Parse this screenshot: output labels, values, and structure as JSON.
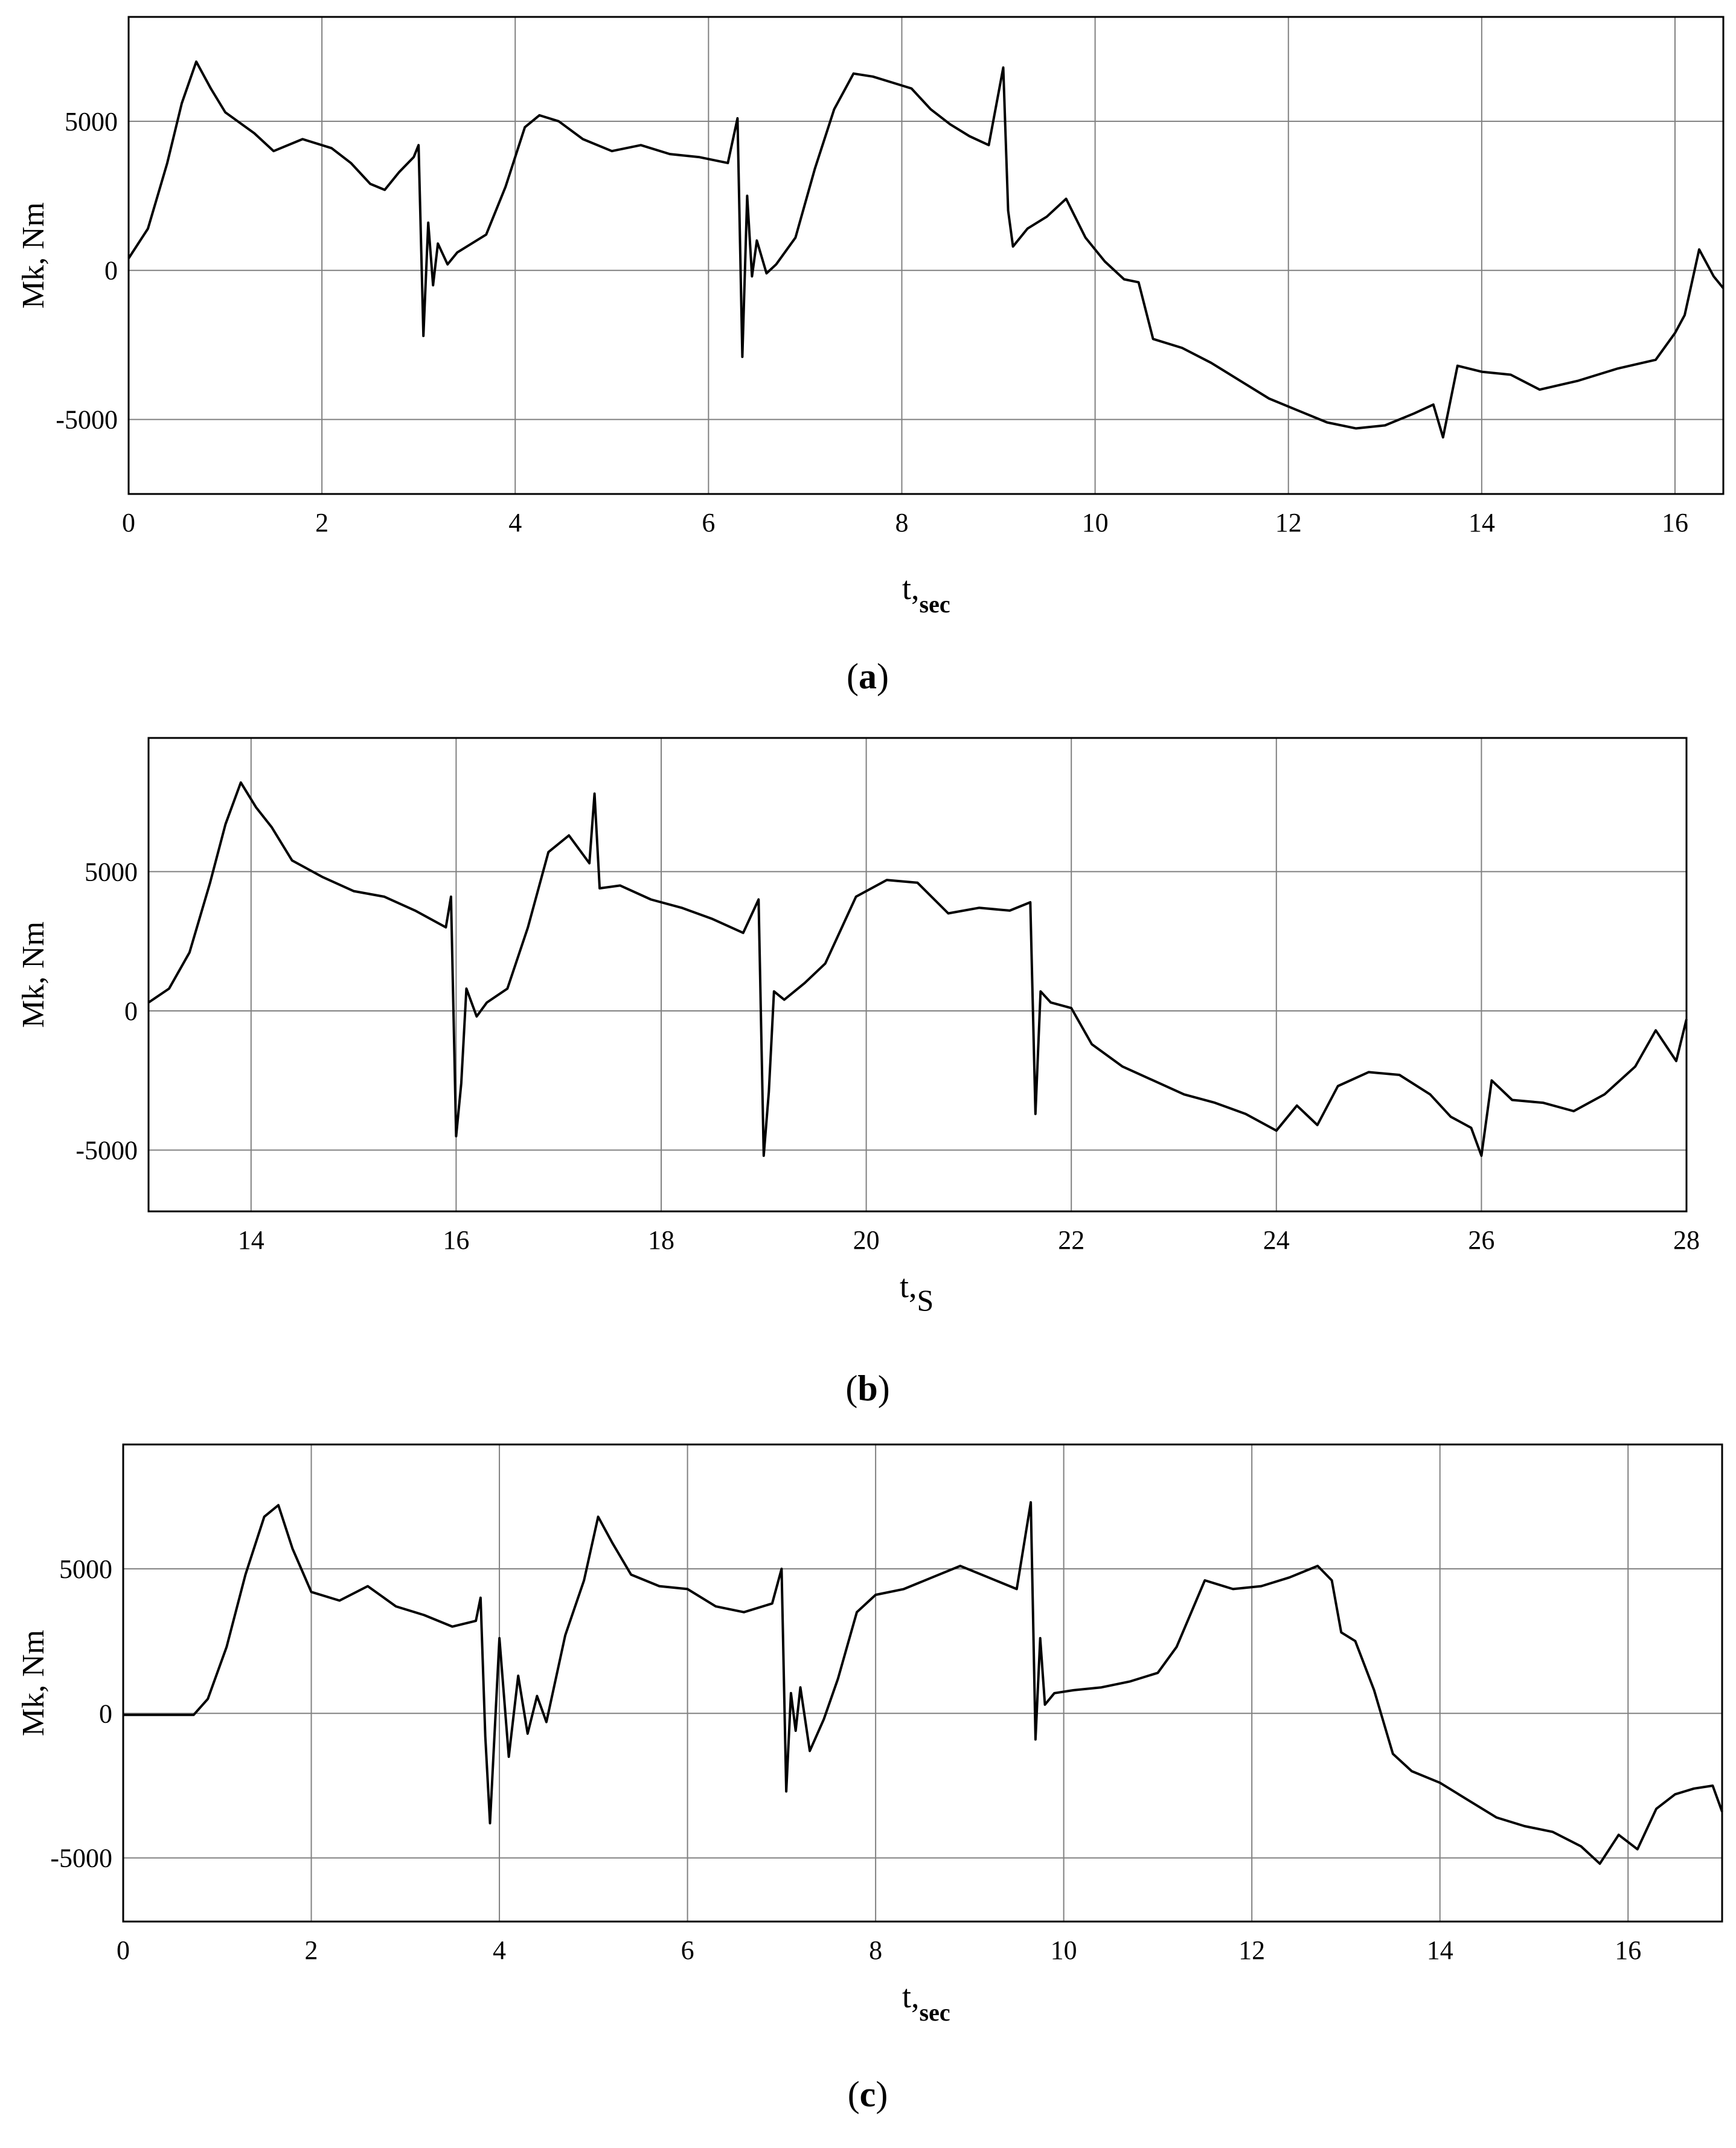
{
  "figure": {
    "panels": [
      {
        "id": "a",
        "label_letter": "a",
        "label_open": "(",
        "label_close": ")"
      },
      {
        "id": "b",
        "label_letter": "b",
        "label_open": "(",
        "label_close": ")"
      },
      {
        "id": "c",
        "label_letter": "c",
        "label_open": "(",
        "label_close": ")"
      }
    ],
    "line_color": "#000000",
    "grid_color": "#808080"
  },
  "chart_data": [
    {
      "type": "line",
      "ylabel": "Mk, Nm",
      "xlabel_main": "t,",
      "xlabel_sub": "sec",
      "xlim": [
        0,
        16.5
      ],
      "ylim": [
        -7500,
        8500
      ],
      "xticks": [
        0,
        2,
        4,
        6,
        8,
        10,
        12,
        14,
        16
      ],
      "yticks": [
        5000,
        0,
        -5000
      ],
      "ytick_labels": [
        "5000",
        "0",
        "-5000"
      ],
      "grid": true,
      "series": [
        {
          "x": [
            0,
            0.2,
            0.4,
            0.55,
            0.7,
            0.85,
            1.0,
            1.3,
            1.5,
            1.8,
            2.1,
            2.3,
            2.5,
            2.65,
            2.8,
            2.95,
            3.0,
            3.05,
            3.1,
            3.15,
            3.2,
            3.3,
            3.4,
            3.5,
            3.7,
            3.9,
            4.1,
            4.25,
            4.45,
            4.7,
            5.0,
            5.3,
            5.6,
            5.9,
            6.2,
            6.3,
            6.35,
            6.4,
            6.45,
            6.5,
            6.6,
            6.7,
            6.9,
            7.1,
            7.3,
            7.5,
            7.7,
            7.9,
            8.1,
            8.3,
            8.5,
            8.7,
            8.9,
            9.05,
            9.1,
            9.15,
            9.3,
            9.5,
            9.7,
            9.9,
            10.1,
            10.3,
            10.45,
            10.6,
            10.9,
            11.2,
            11.5,
            11.8,
            12.1,
            12.4,
            12.7,
            13.0,
            13.3,
            13.5,
            13.6,
            13.75,
            14.0,
            14.3,
            14.6,
            15.0,
            15.4,
            15.8,
            16.0,
            16.1,
            16.25,
            16.4,
            16.5
          ],
          "y": [
            400,
            1400,
            3600,
            5600,
            7000,
            6100,
            5300,
            4600,
            4000,
            4400,
            4100,
            3600,
            2900,
            2700,
            3300,
            3800,
            4200,
            -2200,
            1600,
            -500,
            900,
            200,
            600,
            800,
            1200,
            2800,
            4800,
            5200,
            5000,
            4400,
            4000,
            4200,
            3900,
            3800,
            3600,
            5100,
            -2900,
            2500,
            -200,
            1000,
            -100,
            200,
            1100,
            3400,
            5400,
            6600,
            6500,
            6300,
            6100,
            5400,
            4900,
            4500,
            4200,
            6800,
            2000,
            800,
            1400,
            1800,
            2400,
            1100,
            300,
            -300,
            -400,
            -2300,
            -2600,
            -3100,
            -3700,
            -4300,
            -4700,
            -5100,
            -5300,
            -5200,
            -4800,
            -4500,
            -5600,
            -3200,
            -3400,
            -3500,
            -4000,
            -3700,
            -3300,
            -3000,
            -2100,
            -1500,
            700,
            -200,
            -600
          ]
        }
      ]
    },
    {
      "type": "line",
      "ylabel": "Mk, Nm",
      "xlabel_main": "t,",
      "xlabel_sub": "S",
      "xlim": [
        13,
        28
      ],
      "ylim": [
        -7200,
        9800
      ],
      "xticks": [
        14,
        16,
        18,
        20,
        22,
        24,
        26,
        28
      ],
      "yticks": [
        5000,
        0,
        -5000
      ],
      "ytick_labels": [
        "5000",
        "0",
        "-5000"
      ],
      "grid": true,
      "series": [
        {
          "x": [
            13.0,
            13.2,
            13.4,
            13.6,
            13.75,
            13.9,
            14.05,
            14.2,
            14.4,
            14.7,
            15.0,
            15.3,
            15.6,
            15.9,
            15.95,
            16.0,
            16.05,
            16.1,
            16.2,
            16.3,
            16.5,
            16.7,
            16.9,
            17.1,
            17.3,
            17.35,
            17.4,
            17.6,
            17.9,
            18.2,
            18.5,
            18.8,
            18.95,
            19.0,
            19.05,
            19.1,
            19.2,
            19.4,
            19.6,
            19.9,
            20.2,
            20.5,
            20.8,
            21.1,
            21.4,
            21.6,
            21.65,
            21.7,
            21.8,
            22.0,
            22.2,
            22.5,
            22.8,
            23.1,
            23.4,
            23.7,
            24.0,
            24.2,
            24.4,
            24.6,
            24.9,
            25.2,
            25.5,
            25.7,
            25.9,
            26.0,
            26.1,
            26.3,
            26.6,
            26.9,
            27.2,
            27.5,
            27.7,
            27.9,
            28.0
          ],
          "y": [
            300,
            800,
            2100,
            4600,
            6700,
            8200,
            7300,
            6600,
            5400,
            4800,
            4300,
            4100,
            3600,
            3000,
            4100,
            -4500,
            -2600,
            800,
            -200,
            300,
            800,
            3000,
            5700,
            6300,
            5300,
            7800,
            4400,
            4500,
            4000,
            3700,
            3300,
            2800,
            4000,
            -5200,
            -2900,
            700,
            400,
            1000,
            1700,
            4100,
            4700,
            4600,
            3500,
            3700,
            3600,
            3900,
            -3700,
            700,
            300,
            100,
            -1200,
            -2000,
            -2500,
            -3000,
            -3300,
            -3700,
            -4300,
            -3400,
            -4100,
            -2700,
            -2200,
            -2300,
            -3000,
            -3800,
            -4200,
            -5200,
            -2500,
            -3200,
            -3300,
            -3600,
            -3000,
            -2000,
            -700,
            -1800,
            -300
          ]
        }
      ]
    },
    {
      "type": "line",
      "ylabel": "Mk, Nm",
      "xlabel_main": "t,",
      "xlabel_sub": "sec",
      "xlim": [
        0,
        17
      ],
      "ylim": [
        -7200,
        9300
      ],
      "xticks": [
        0,
        2,
        4,
        6,
        8,
        10,
        12,
        14,
        16
      ],
      "yticks": [
        5000,
        0,
        -5000
      ],
      "ytick_labels": [
        "5000",
        "0",
        "-5000"
      ],
      "grid": true,
      "series": [
        {
          "x": [
            0,
            0.4,
            0.75,
            0.9,
            1.1,
            1.3,
            1.5,
            1.65,
            1.8,
            2.0,
            2.3,
            2.6,
            2.9,
            3.2,
            3.5,
            3.75,
            3.8,
            3.85,
            3.9,
            4.0,
            4.1,
            4.2,
            4.3,
            4.4,
            4.5,
            4.7,
            4.9,
            5.05,
            5.2,
            5.4,
            5.7,
            6.0,
            6.3,
            6.6,
            6.9,
            7.0,
            7.05,
            7.1,
            7.15,
            7.2,
            7.3,
            7.45,
            7.6,
            7.8,
            8.0,
            8.3,
            8.6,
            8.9,
            9.2,
            9.5,
            9.65,
            9.7,
            9.75,
            9.8,
            9.9,
            10.1,
            10.4,
            10.7,
            11.0,
            11.2,
            11.5,
            11.8,
            12.1,
            12.4,
            12.7,
            12.85,
            12.95,
            13.1,
            13.3,
            13.5,
            13.7,
            14.0,
            14.3,
            14.6,
            14.9,
            15.2,
            15.5,
            15.7,
            15.9,
            16.1,
            16.3,
            16.5,
            16.7,
            16.9,
            17.0
          ],
          "y": [
            -50,
            -50,
            -50,
            500,
            2300,
            4800,
            6800,
            7200,
            5700,
            4200,
            3900,
            4400,
            3700,
            3400,
            3000,
            3200,
            4000,
            -800,
            -3800,
            2600,
            -1500,
            1300,
            -700,
            600,
            -300,
            2700,
            4600,
            6800,
            5900,
            4800,
            4400,
            4300,
            3700,
            3500,
            3800,
            5000,
            -2700,
            700,
            -600,
            900,
            -1300,
            -200,
            1200,
            3500,
            4100,
            4300,
            4700,
            5100,
            4700,
            4300,
            7300,
            -900,
            2600,
            300,
            700,
            800,
            900,
            1100,
            1400,
            2300,
            4600,
            4300,
            4400,
            4700,
            5100,
            4600,
            2800,
            2500,
            800,
            -1400,
            -2000,
            -2400,
            -3000,
            -3600,
            -3900,
            -4100,
            -4600,
            -5200,
            -4200,
            -4700,
            -3300,
            -2800,
            -2600,
            -2500,
            -3400
          ]
        }
      ]
    }
  ]
}
